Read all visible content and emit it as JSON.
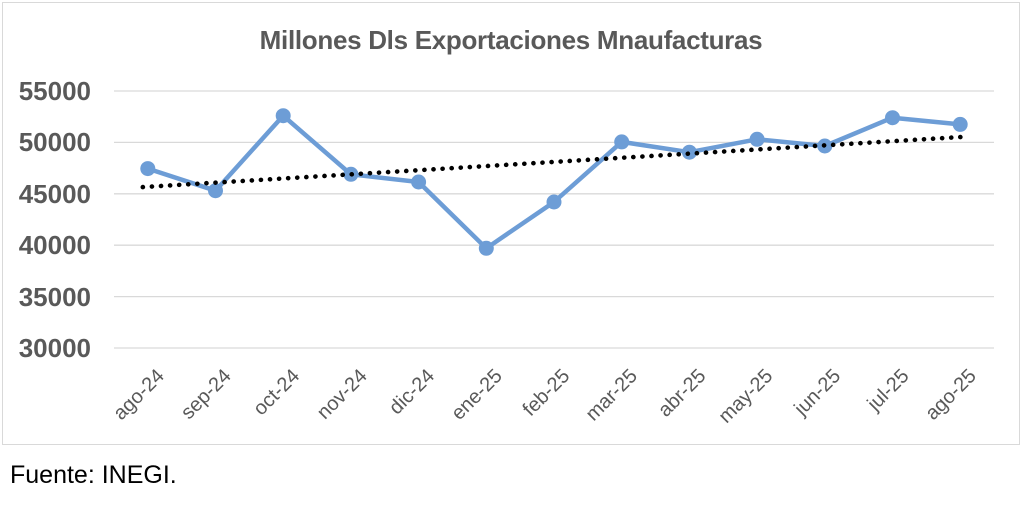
{
  "chart": {
    "title": "Millones Dls Exportaciones Mnaufacturas",
    "source_note": "Fuente: INEGI.",
    "colors": {
      "series_line": "#6d9dd6",
      "marker_fill": "#6d9dd6",
      "trend_line": "#000000",
      "gridline": "#d9d9d9",
      "frame_border": "#d9d9d9",
      "axis_text": "#595959",
      "title_text": "#595959",
      "source_text": "#000000"
    }
  },
  "chart_data": {
    "type": "line",
    "title": "Millones Dls Exportaciones Mnaufacturas",
    "xlabel": "",
    "ylabel": "",
    "categories": [
      "ago-24",
      "sep-24",
      "oct-24",
      "nov-24",
      "dic-24",
      "ene-25",
      "feb-25",
      "mar-25",
      "abr-25",
      "may-25",
      "jun-25",
      "jul-25",
      "ago-25"
    ],
    "values": [
      47450,
      45300,
      52600,
      46900,
      46150,
      39700,
      44200,
      50050,
      49050,
      50300,
      49650,
      52400,
      51750
    ],
    "yticks": [
      30000,
      35000,
      40000,
      45000,
      50000,
      55000
    ],
    "ylim": [
      30000,
      55000
    ],
    "grid": "horizontal",
    "legend": "none",
    "marker": "circle",
    "trendline": {
      "type": "linear",
      "style": "dotted",
      "start_value": 45650,
      "end_value": 50550
    }
  }
}
